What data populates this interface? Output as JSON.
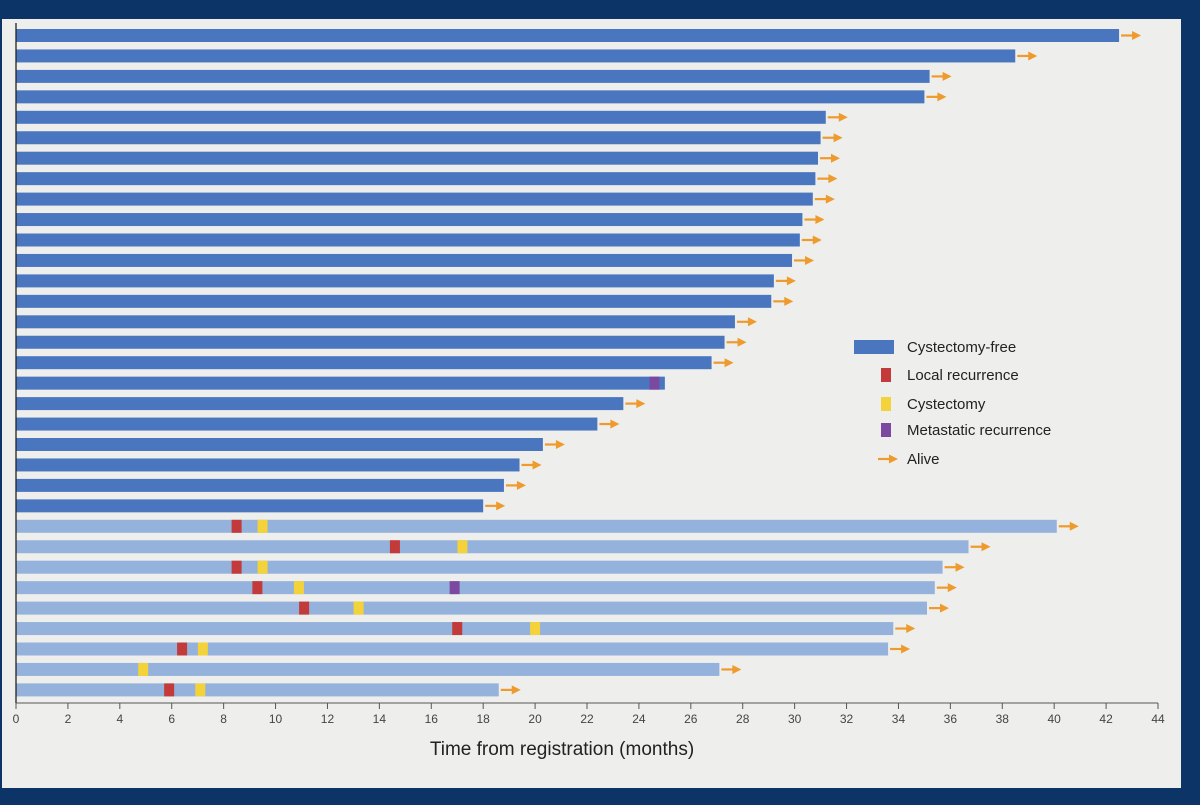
{
  "chart_data": {
    "type": "swimmer",
    "xlabel": "Time from registration (months)",
    "xlim": [
      0,
      44
    ],
    "x_ticks": [
      0,
      2,
      4,
      6,
      8,
      10,
      12,
      14,
      16,
      18,
      20,
      22,
      24,
      26,
      28,
      30,
      32,
      34,
      36,
      38,
      40,
      42,
      44
    ],
    "x_tick_labels": [
      "0",
      "2",
      "4",
      "6",
      "8",
      "10",
      "12",
      "14",
      "16",
      "18",
      "20",
      "22",
      "24",
      "26",
      "28",
      "30",
      "32",
      "34",
      "36",
      "38",
      "40",
      "42",
      "44"
    ],
    "legend": {
      "position": "right",
      "items": [
        {
          "key": "cystectomy_free",
          "label": "Cystectomy-free",
          "color": "#4a76c0"
        },
        {
          "key": "local",
          "label": "Local recurrence",
          "color": "#c23a3a"
        },
        {
          "key": "cystectomy",
          "label": "Cystectomy",
          "color": "#f3d23a"
        },
        {
          "key": "metastatic",
          "label": "Metastatic recurrence",
          "color": "#7b4aa0"
        },
        {
          "key": "alive",
          "label": "Alive",
          "color": "#ef9a2c"
        }
      ]
    },
    "colors": {
      "cystectomy_free_bar": "#4a76c0",
      "post_cystectomy_bar": "#94b2dc",
      "local": "#c23a3a",
      "cystectomy": "#f3d23a",
      "metastatic": "#7b4aa0",
      "alive": "#ef9a2c"
    },
    "patients": [
      {
        "group": "cystectomy_free",
        "end": 42.5,
        "alive": true,
        "events": []
      },
      {
        "group": "cystectomy_free",
        "end": 38.5,
        "alive": true,
        "events": []
      },
      {
        "group": "cystectomy_free",
        "end": 35.2,
        "alive": true,
        "events": []
      },
      {
        "group": "cystectomy_free",
        "end": 35.0,
        "alive": true,
        "events": []
      },
      {
        "group": "cystectomy_free",
        "end": 31.2,
        "alive": true,
        "events": []
      },
      {
        "group": "cystectomy_free",
        "end": 31.0,
        "alive": true,
        "events": []
      },
      {
        "group": "cystectomy_free",
        "end": 30.9,
        "alive": true,
        "events": []
      },
      {
        "group": "cystectomy_free",
        "end": 30.8,
        "alive": true,
        "events": []
      },
      {
        "group": "cystectomy_free",
        "end": 30.7,
        "alive": true,
        "events": []
      },
      {
        "group": "cystectomy_free",
        "end": 30.3,
        "alive": true,
        "events": []
      },
      {
        "group": "cystectomy_free",
        "end": 30.2,
        "alive": true,
        "events": []
      },
      {
        "group": "cystectomy_free",
        "end": 29.9,
        "alive": true,
        "events": []
      },
      {
        "group": "cystectomy_free",
        "end": 29.2,
        "alive": true,
        "events": []
      },
      {
        "group": "cystectomy_free",
        "end": 29.1,
        "alive": true,
        "events": []
      },
      {
        "group": "cystectomy_free",
        "end": 27.7,
        "alive": true,
        "events": []
      },
      {
        "group": "cystectomy_free",
        "end": 27.3,
        "alive": true,
        "events": []
      },
      {
        "group": "cystectomy_free",
        "end": 26.8,
        "alive": true,
        "events": []
      },
      {
        "group": "cystectomy_free",
        "end": 25.0,
        "alive": false,
        "events": [
          {
            "type": "metastatic",
            "t": 24.6
          }
        ]
      },
      {
        "group": "cystectomy_free",
        "end": 23.4,
        "alive": true,
        "events": []
      },
      {
        "group": "cystectomy_free",
        "end": 22.4,
        "alive": true,
        "events": []
      },
      {
        "group": "cystectomy_free",
        "end": 20.3,
        "alive": true,
        "events": []
      },
      {
        "group": "cystectomy_free",
        "end": 19.4,
        "alive": true,
        "events": []
      },
      {
        "group": "cystectomy_free",
        "end": 18.8,
        "alive": true,
        "events": []
      },
      {
        "group": "cystectomy_free",
        "end": 18.0,
        "alive": true,
        "events": []
      },
      {
        "group": "post_cystectomy",
        "end": 40.1,
        "alive": true,
        "events": [
          {
            "type": "local",
            "t": 8.5
          },
          {
            "type": "cystectomy",
            "t": 9.5
          }
        ]
      },
      {
        "group": "post_cystectomy",
        "end": 36.7,
        "alive": true,
        "events": [
          {
            "type": "local",
            "t": 14.6
          },
          {
            "type": "cystectomy",
            "t": 17.2
          }
        ]
      },
      {
        "group": "post_cystectomy",
        "end": 35.7,
        "alive": true,
        "events": [
          {
            "type": "local",
            "t": 8.5
          },
          {
            "type": "cystectomy",
            "t": 9.5
          }
        ]
      },
      {
        "group": "post_cystectomy",
        "end": 35.4,
        "alive": true,
        "events": [
          {
            "type": "local",
            "t": 9.3
          },
          {
            "type": "cystectomy",
            "t": 10.9
          },
          {
            "type": "metastatic",
            "t": 16.9
          }
        ]
      },
      {
        "group": "post_cystectomy",
        "end": 35.1,
        "alive": true,
        "events": [
          {
            "type": "local",
            "t": 11.1
          },
          {
            "type": "cystectomy",
            "t": 13.2
          }
        ]
      },
      {
        "group": "post_cystectomy",
        "end": 33.8,
        "alive": true,
        "events": [
          {
            "type": "local",
            "t": 17.0
          },
          {
            "type": "cystectomy",
            "t": 20.0
          }
        ]
      },
      {
        "group": "post_cystectomy",
        "end": 33.6,
        "alive": true,
        "events": [
          {
            "type": "local",
            "t": 6.4
          },
          {
            "type": "cystectomy",
            "t": 7.2
          }
        ]
      },
      {
        "group": "post_cystectomy",
        "end": 27.1,
        "alive": true,
        "events": [
          {
            "type": "cystectomy",
            "t": 4.9
          }
        ]
      },
      {
        "group": "post_cystectomy",
        "end": 18.6,
        "alive": true,
        "events": [
          {
            "type": "local",
            "t": 5.9
          },
          {
            "type": "cystectomy",
            "t": 7.1
          }
        ]
      }
    ]
  }
}
